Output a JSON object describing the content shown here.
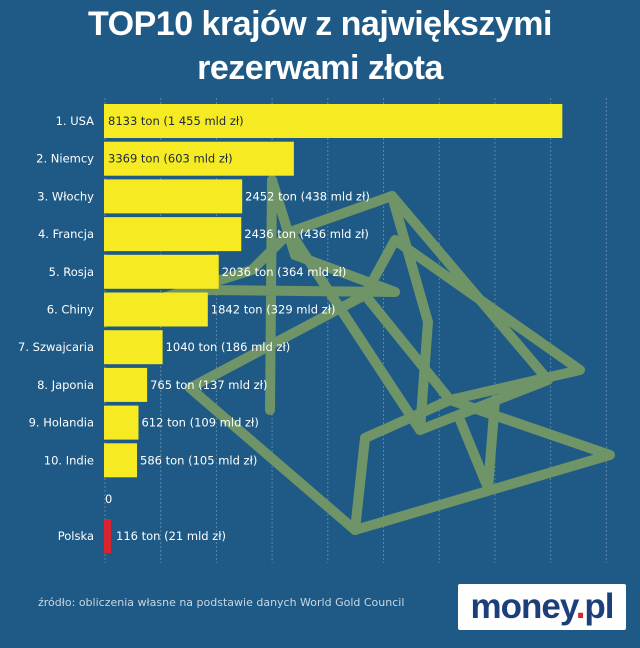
{
  "title": {
    "line1": "TOP10 krajów z największymi",
    "line2": "rezerwami złota"
  },
  "source": "źródło: obliczenia własne na podstawie danych World Gold Council",
  "logo": {
    "main": "money",
    "dot": ".",
    "tld": "pl"
  },
  "colors": {
    "background": "#1e5a85",
    "bar": "#f6eb23",
    "highlight_bar": "#d9232e",
    "gold_outline": "#6e9467"
  },
  "chart_data": {
    "type": "bar",
    "orientation": "horizontal",
    "categories": [
      "1. USA",
      "2. Niemcy",
      "3. Włochy",
      "4. Francja",
      "5. Rosja",
      "6. Chiny",
      "7. Szwajcaria",
      "8. Japonia",
      "9. Holandia",
      "10. Indie",
      "Polska"
    ],
    "values": [
      8133,
      3369,
      2452,
      2436,
      2036,
      1842,
      1040,
      765,
      612,
      586,
      116
    ],
    "data_labels": [
      "8133 ton (1 455 mld zł)",
      "3369 ton (603 mld zł)",
      "2452 ton (438 mld zł)",
      "2436 ton (436 mld zł)",
      "2036 ton (364 mld zł)",
      "1842 ton (329 mld zł)",
      "1040 ton (186 mld zł)",
      "765 ton (137 mld zł)",
      "612 ton (109 mld zł)",
      "586 ton (105 mld zł)",
      "116 ton (21 mld zł)"
    ],
    "highlight_category": "Polska",
    "x_tick_labels": [
      "0"
    ],
    "xlim": [
      0,
      8500
    ],
    "grid": "vertical",
    "unit": "ton"
  }
}
